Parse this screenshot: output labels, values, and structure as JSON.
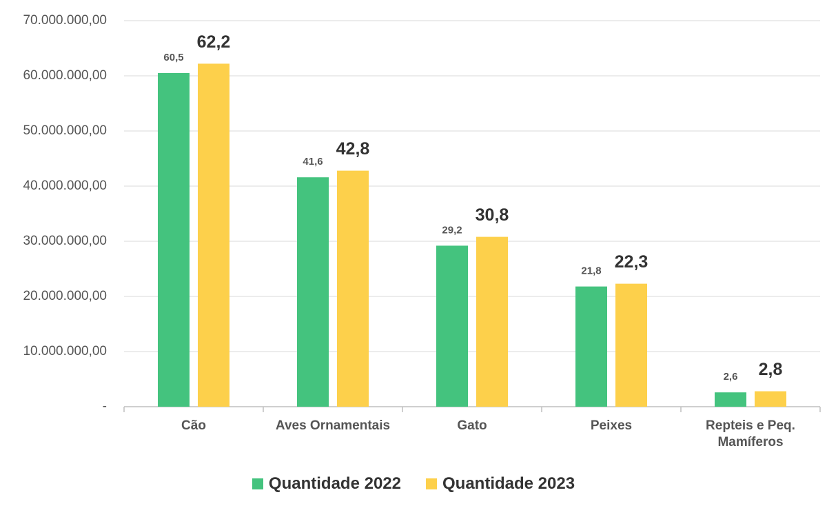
{
  "chart_data": {
    "type": "bar",
    "categories": [
      "Cão",
      "Aves Ornamentais",
      "Gato",
      "Peixes",
      "Repteis e Peq. Mamíferos"
    ],
    "series": [
      {
        "name": "Quantidade 2022",
        "color": "#44c37e",
        "values": [
          60500000,
          41600000,
          29200000,
          21800000,
          2600000
        ],
        "value_labels": [
          "60,5",
          "41,6",
          "29,2",
          "21,8",
          "2,6"
        ]
      },
      {
        "name": "Quantidade 2023",
        "color": "#fdd04b",
        "values": [
          62200000,
          42800000,
          30800000,
          22300000,
          2800000
        ],
        "value_labels": [
          "62,2",
          "42,8",
          "30,8",
          "22,3",
          "2,8"
        ]
      }
    ],
    "ylim": [
      0,
      70000000
    ],
    "yticks": [
      {
        "value": 0,
        "label": "-"
      },
      {
        "value": 10000000,
        "label": "10.000.000,00"
      },
      {
        "value": 20000000,
        "label": "20.000.000,00"
      },
      {
        "value": 30000000,
        "label": "30.000.000,00"
      },
      {
        "value": 40000000,
        "label": "40.000.000,00"
      },
      {
        "value": 50000000,
        "label": "50.000.000,00"
      },
      {
        "value": 60000000,
        "label": "60.000.000,00"
      },
      {
        "value": 70000000,
        "label": "70.000.000,00"
      }
    ],
    "grid": true,
    "legend": "bottom"
  }
}
